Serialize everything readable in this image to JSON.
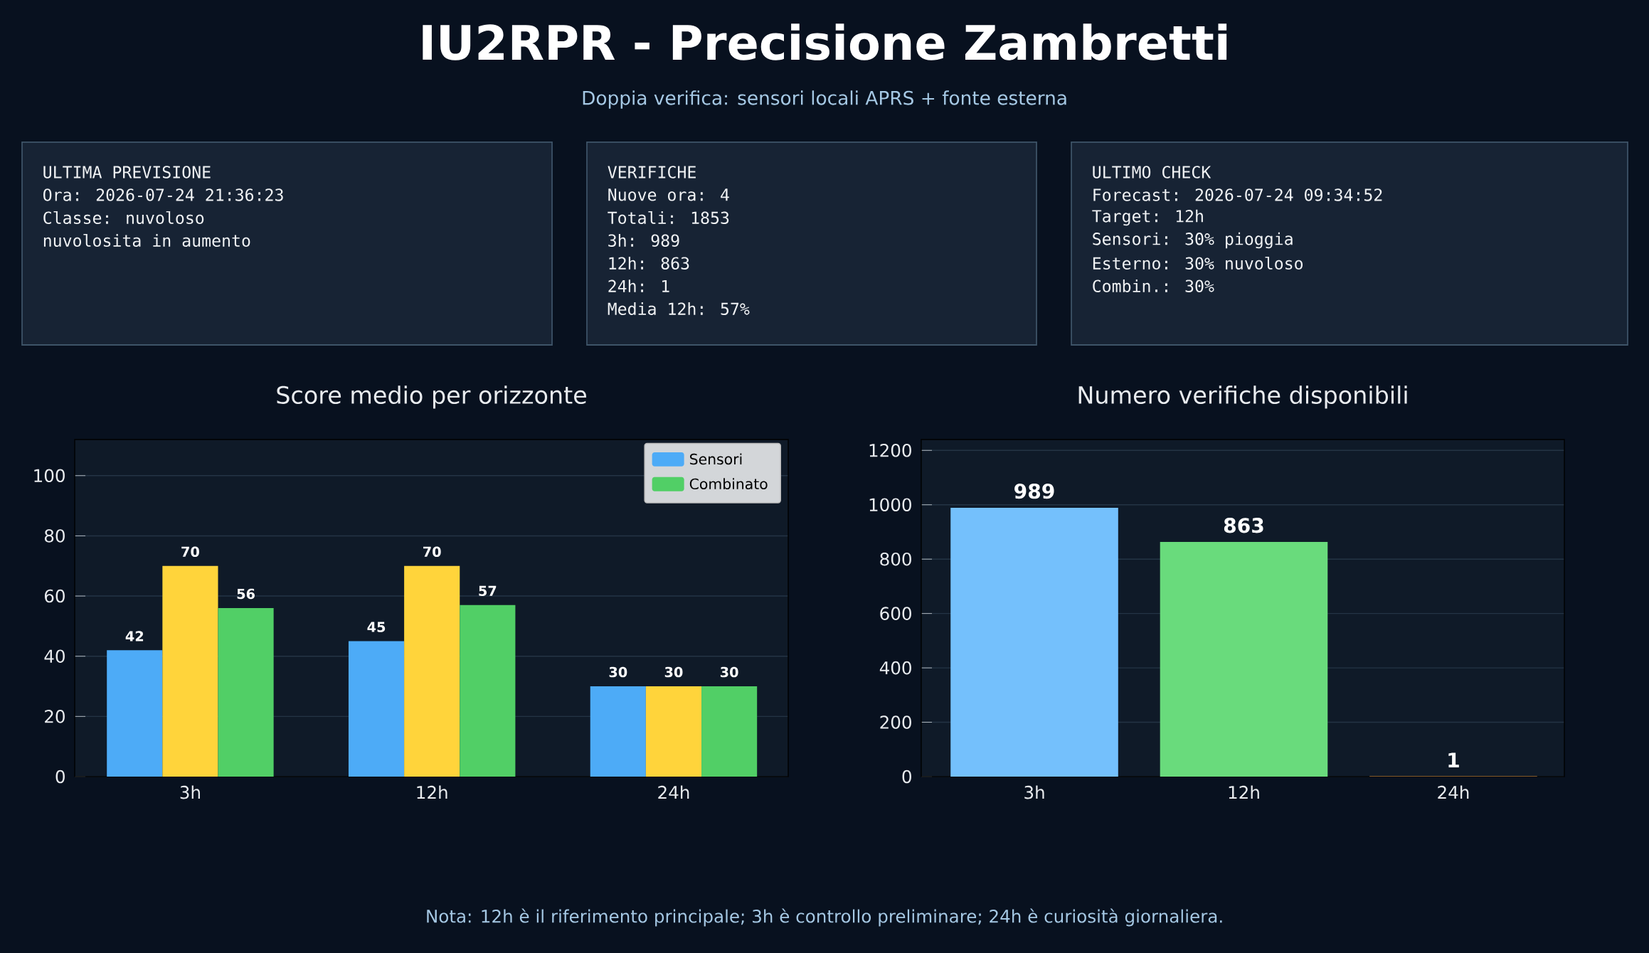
{
  "chart_data": [
    {
      "type": "other",
      "title": "IU2RPR - Precisione Zambretti",
      "subtitle": "Doppia verifica: sensori locali APRS + fonte esterna",
      "annotations": [
        "Nota: 12h è il riferimento principale; 3h è controllo preliminare; 24h è curiosità giornaliera."
      ]
    },
    {
      "type": "other",
      "title": "ULTIMA PREVISIONE",
      "annotations": [
        "Ora: 2026-07-24 21:36:23",
        "Classe: nuvoloso",
        "nuvolosita in aumento"
      ]
    },
    {
      "type": "other",
      "title": "VERIFICHE",
      "annotations": [
        "Nuove ora: 4",
        "Totali:    1853",
        "3h:        989",
        "12h:       863",
        "24h:       1",
        "Media 12h: 57%"
      ]
    },
    {
      "type": "other",
      "title": "ULTIMO CHECK",
      "annotations": [
        "Forecast: 2026-07-24 09:34:52",
        "Target:   12h",
        "Sensori:  30% pioggia",
        "Esterno:  30% nuvoloso",
        "Combin.:  30%"
      ]
    },
    {
      "type": "bar",
      "title": "Score medio per orizzonte",
      "categories": [
        "3h",
        "12h",
        "24h"
      ],
      "series": [
        {
          "name": "Sensori",
          "color": "#4dabf7",
          "values": [
            42,
            45,
            30
          ]
        },
        {
          "color": "#ffd43b",
          "values": [
            70,
            70,
            30
          ]
        },
        {
          "name": "Combinato",
          "color": "#51cf66",
          "values": [
            56,
            57,
            30
          ]
        }
      ],
      "ylim": [
        0,
        112
      ],
      "yticks": [
        0,
        20,
        40,
        60,
        80,
        100
      ],
      "grid": "y",
      "legend": "top right",
      "data_labels": true
    },
    {
      "type": "bar",
      "title": "Numero verifiche disponibili",
      "categories": [
        "3h",
        "12h",
        "24h"
      ],
      "values": [
        989,
        863,
        1
      ],
      "colors": [
        "#74c0fc",
        "#69db7c",
        "#ffa94d"
      ],
      "ylim": [
        0,
        1240
      ],
      "yticks": [
        0,
        200,
        400,
        600,
        800,
        1000,
        1200
      ],
      "grid": "y",
      "data_labels": true
    }
  ]
}
